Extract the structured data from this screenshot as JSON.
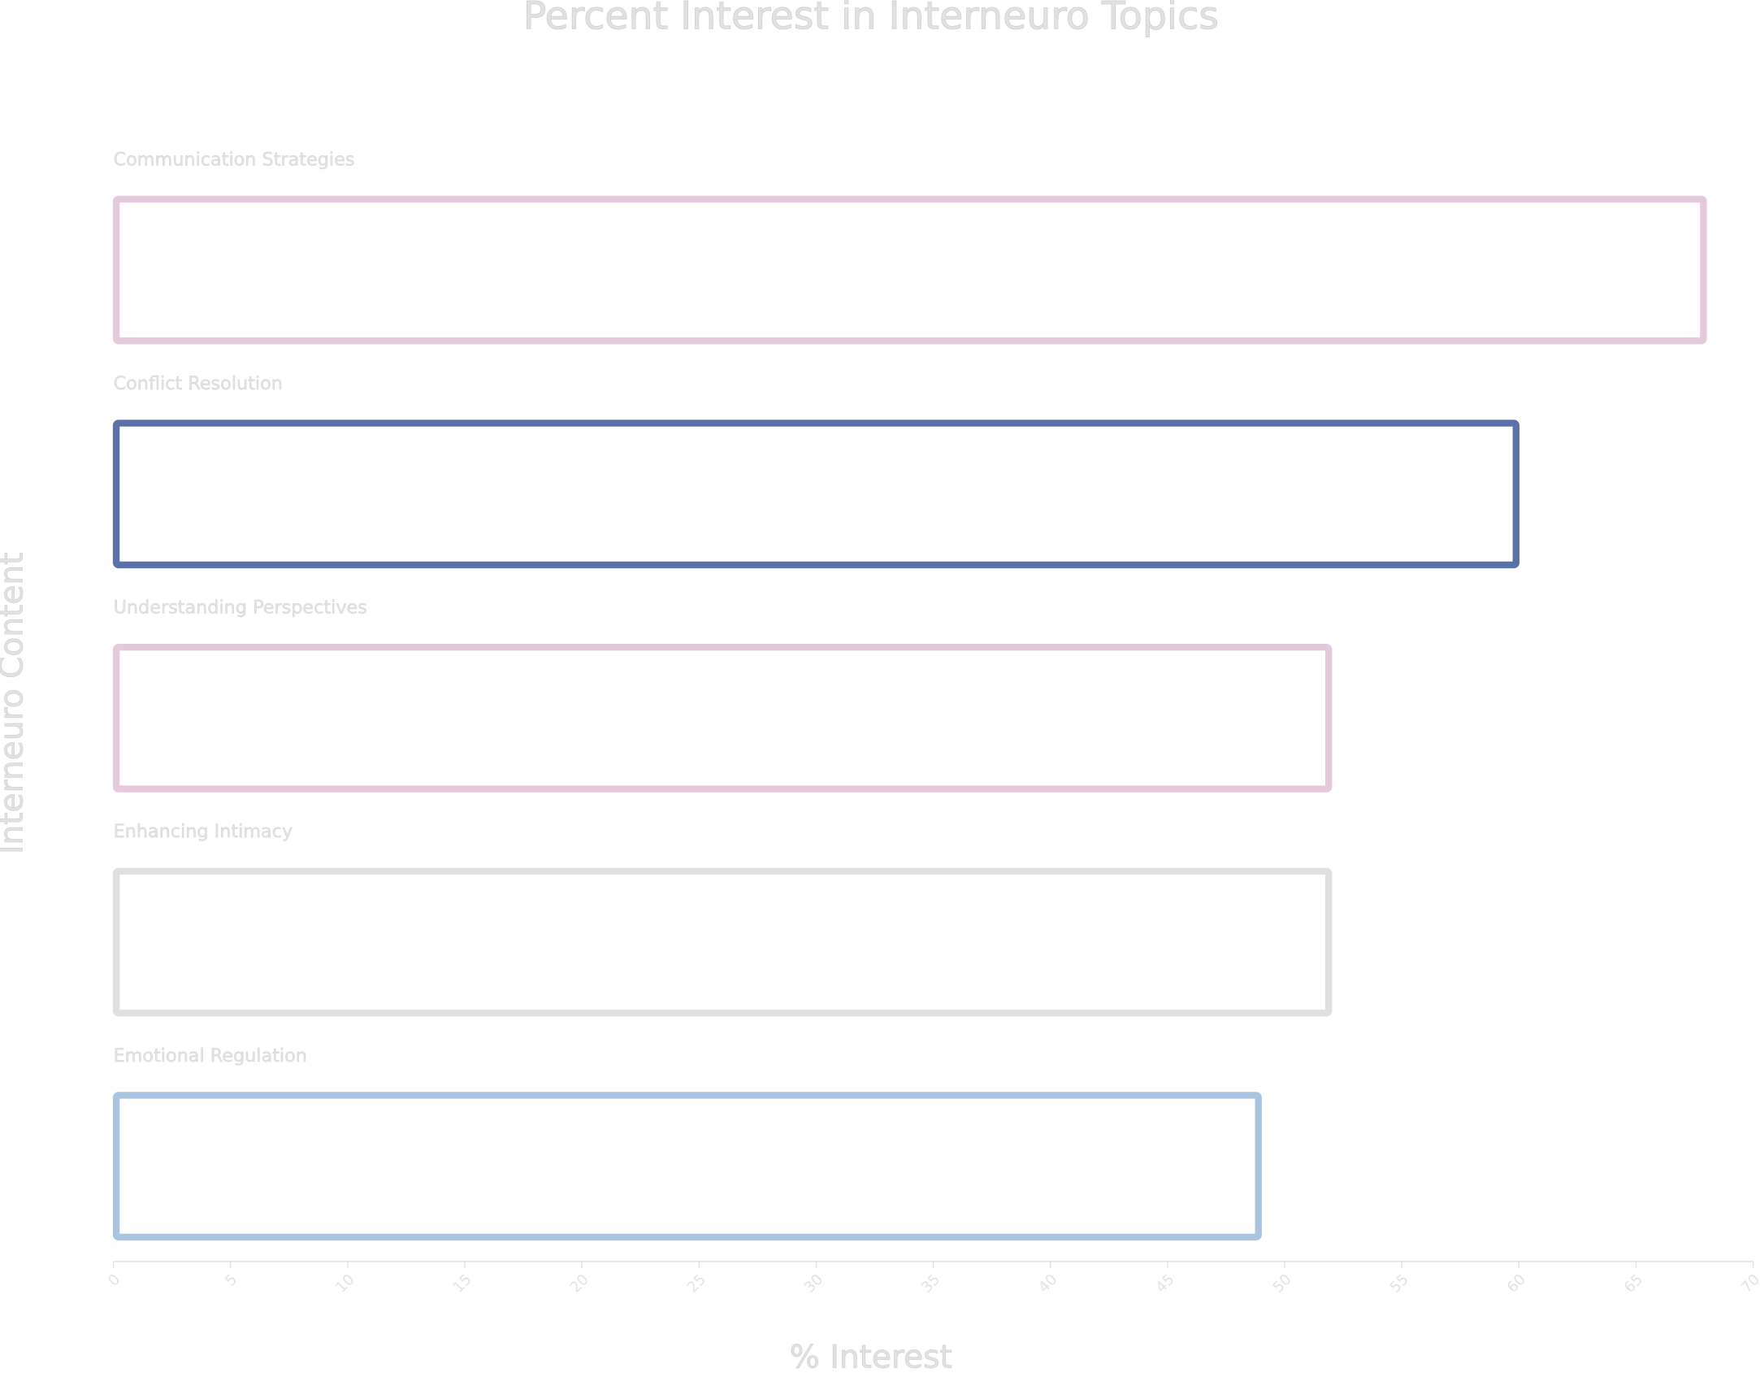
{
  "chart_data": {
    "type": "bar",
    "orientation": "horizontal",
    "title": "Percent Interest in Interneuro Topics",
    "x_label": "% Interest",
    "y_label": "Interneuro Content",
    "categories": [
      "Communication Strategies",
      "Conflict Resolution",
      "Understanding Perspectives",
      "Enhancing Intimacy",
      "Emotional Regulation"
    ],
    "values": [
      68,
      60,
      52,
      52,
      49
    ],
    "colors": [
      "#e6c8dc",
      "#5a72a8",
      "#e6c8dc",
      "#e0e0e0",
      "#a9c4e0"
    ],
    "xlim": [
      0,
      70
    ],
    "xticks": [
      0,
      5,
      10,
      15,
      20,
      25,
      30,
      35,
      40,
      45,
      50,
      55,
      60,
      65,
      70
    ]
  }
}
